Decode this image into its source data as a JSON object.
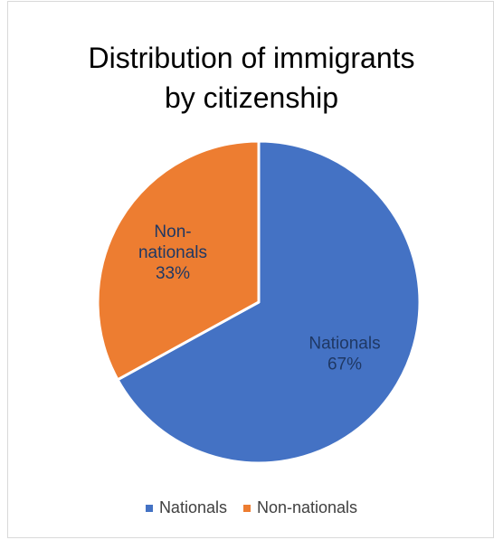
{
  "chart_data": {
    "type": "pie",
    "title_lines": [
      "Distribution of immigrants",
      "by citizenship"
    ],
    "slices": [
      {
        "name": "Nationals",
        "value": 67,
        "label_lines": [
          "Nationals",
          "67%"
        ],
        "color": "#4472c4",
        "label_color": "#1f3864"
      },
      {
        "name": "Non-nationals",
        "value": 33,
        "label_lines": [
          "Non-",
          "nationals",
          "33%"
        ],
        "color": "#ed7d31",
        "label_color": "#1f3864"
      }
    ],
    "legend": {
      "position": "bottom",
      "items": [
        "Nationals",
        "Non-nationals"
      ]
    }
  }
}
